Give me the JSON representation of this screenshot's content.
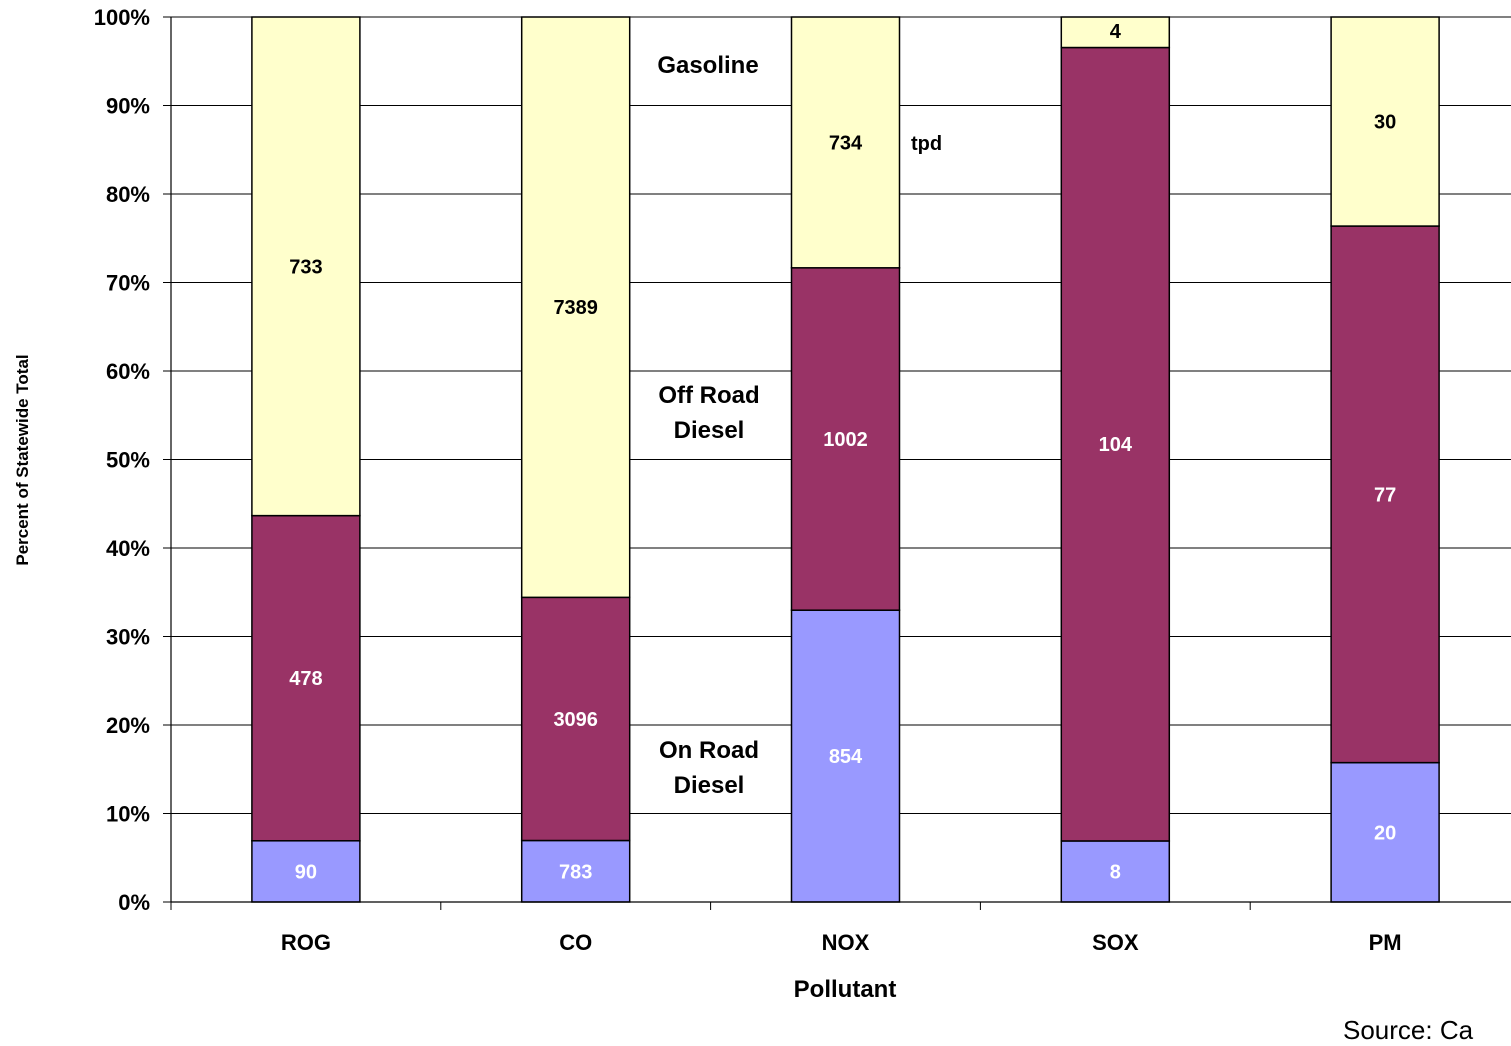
{
  "chart_data": {
    "type": "bar",
    "stacked": "percent",
    "categories": [
      "ROG",
      "CO",
      "NOX",
      "SOX",
      "PM"
    ],
    "series": [
      {
        "key": "onroad",
        "values": [
          90,
          783,
          854,
          8,
          20
        ],
        "color": "#9999ff",
        "label_color": "#ffffff"
      },
      {
        "key": "offroad",
        "values": [
          478,
          3096,
          1002,
          104,
          77
        ],
        "color": "#993366",
        "label_color": "#ffffff"
      },
      {
        "key": "gasoline",
        "values": [
          733,
          7389,
          734,
          4,
          30
        ],
        "color": "#ffffcc",
        "label_color": "#000000"
      }
    ],
    "yticks": [
      "0%",
      "10%",
      "20%",
      "30%",
      "40%",
      "50%",
      "60%",
      "70%",
      "80%",
      "90%",
      "100%"
    ],
    "ylim": [
      0,
      100
    ],
    "ylabel": "Percent of Statewide Total",
    "xlabel": "Pollutant",
    "grid": true,
    "annotations": {
      "gasoline": "Gasoline",
      "offroad_1": "Off Road",
      "offroad_2": "Diesel",
      "onroad_1": "On Road",
      "onroad_2": "Diesel",
      "unit": "tpd"
    }
  },
  "source": "Source:  Ca"
}
